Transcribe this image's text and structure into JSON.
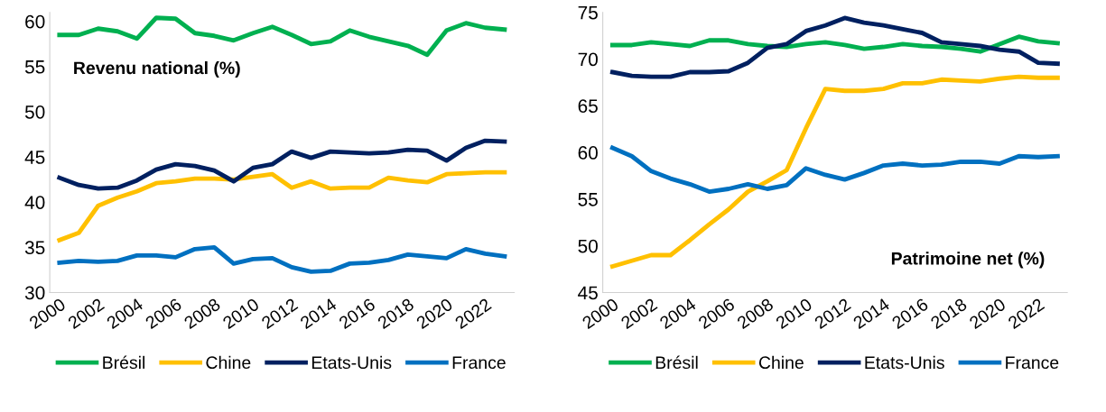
{
  "chart_data": [
    {
      "type": "line",
      "annotations": [
        "Revenu national (%)"
      ],
      "categories": [
        "2000",
        null,
        "2002",
        null,
        "2004",
        null,
        "2006",
        null,
        "2008",
        null,
        "2010",
        null,
        "2012",
        null,
        "2014",
        null,
        "2016",
        null,
        "2018",
        null,
        "2020",
        null,
        "2022",
        null
      ],
      "ylim": [
        30,
        61
      ],
      "yticks": [
        30,
        35,
        40,
        45,
        50,
        55,
        60
      ],
      "grid": false,
      "legend": "bottom",
      "marker": "none",
      "line_style": "solid",
      "series": [
        {
          "name": "Brésil",
          "color": "#00b050",
          "values": [
            58.5,
            58.5,
            59.2,
            58.9,
            58.1,
            60.4,
            60.3,
            58.7,
            58.4,
            57.9,
            58.7,
            59.4,
            58.5,
            57.5,
            57.8,
            59.0,
            58.3,
            57.8,
            57.3,
            56.3,
            59.0,
            59.8,
            59.3,
            59.1
          ]
        },
        {
          "name": "Chine",
          "color": "#ffc000",
          "values": [
            35.8,
            36.6,
            39.6,
            40.5,
            41.2,
            42.1,
            42.3,
            42.6,
            42.6,
            42.5,
            42.8,
            43.1,
            41.6,
            42.3,
            41.5,
            41.6,
            41.6,
            42.7,
            42.4,
            42.2,
            43.1,
            43.2,
            43.3,
            43.3
          ]
        },
        {
          "name": "Etats-Unis",
          "color": "#002060",
          "values": [
            42.7,
            41.9,
            41.5,
            41.6,
            42.4,
            43.6,
            44.2,
            44.0,
            43.5,
            42.3,
            43.8,
            44.2,
            45.6,
            44.9,
            45.6,
            45.5,
            45.4,
            45.5,
            45.8,
            45.7,
            44.6,
            46.0,
            46.8,
            46.7
          ]
        },
        {
          "name": "France",
          "color": "#0070c0",
          "values": [
            33.3,
            33.5,
            33.4,
            33.5,
            34.1,
            34.1,
            33.9,
            34.8,
            35.0,
            33.2,
            33.7,
            33.8,
            32.8,
            32.3,
            32.4,
            33.2,
            33.3,
            33.6,
            34.2,
            34.0,
            33.8,
            34.8,
            34.3,
            34.0
          ]
        }
      ]
    },
    {
      "type": "line",
      "annotations": [
        "Patrimoine net (%)"
      ],
      "categories": [
        "2000",
        null,
        "2002",
        null,
        "2004",
        null,
        "2006",
        null,
        "2008",
        null,
        "2010",
        null,
        "2012",
        null,
        "2014",
        null,
        "2016",
        null,
        "2018",
        null,
        "2020",
        null,
        "2022",
        null
      ],
      "ylim": [
        45,
        75
      ],
      "yticks": [
        45,
        50,
        55,
        60,
        65,
        70,
        75
      ],
      "grid": false,
      "legend": "bottom",
      "marker": "none",
      "line_style": "solid",
      "series": [
        {
          "name": "Brésil",
          "color": "#00b050",
          "values": [
            71.5,
            71.5,
            71.8,
            71.6,
            71.4,
            72.0,
            72.0,
            71.6,
            71.4,
            71.3,
            71.6,
            71.8,
            71.5,
            71.1,
            71.3,
            71.6,
            71.4,
            71.3,
            71.1,
            70.8,
            71.6,
            72.4,
            71.9,
            71.7
          ]
        },
        {
          "name": "Chine",
          "color": "#ffc000",
          "values": [
            47.8,
            48.4,
            49.0,
            49.0,
            50.6,
            52.3,
            53.9,
            55.8,
            56.9,
            58.1,
            62.6,
            66.8,
            66.6,
            66.6,
            66.8,
            67.4,
            67.4,
            67.8,
            67.7,
            67.6,
            67.9,
            68.1,
            68.0,
            68.0
          ]
        },
        {
          "name": "Etats-Unis",
          "color": "#002060",
          "values": [
            68.6,
            68.2,
            68.1,
            68.1,
            68.6,
            68.6,
            68.7,
            69.6,
            71.2,
            71.6,
            73.0,
            73.6,
            74.4,
            73.9,
            73.6,
            73.2,
            72.8,
            71.8,
            71.6,
            71.4,
            71.0,
            70.8,
            69.6,
            69.5
          ]
        },
        {
          "name": "France",
          "color": "#0070c0",
          "values": [
            60.5,
            59.6,
            58.0,
            57.2,
            56.6,
            55.8,
            56.1,
            56.6,
            56.1,
            56.5,
            58.3,
            57.6,
            57.1,
            57.8,
            58.6,
            58.8,
            58.6,
            58.7,
            59.0,
            59.0,
            58.8,
            59.6,
            59.5,
            59.6
          ]
        }
      ]
    }
  ]
}
